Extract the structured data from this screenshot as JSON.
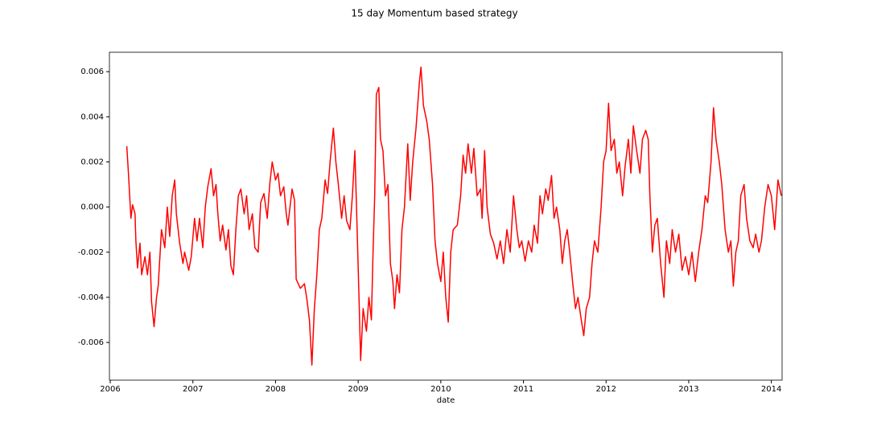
{
  "chart_data": {
    "type": "line",
    "title": "15 day Momentum based strategy",
    "xlabel": "date",
    "color": "#ff0000",
    "xlim": [
      2005.99,
      2014.13
    ],
    "xticks": [
      2006,
      2007,
      2008,
      2009,
      2010,
      2011,
      2012,
      2013,
      2014
    ],
    "ylim": [
      -0.00767,
      0.00686
    ],
    "yticks": [
      -0.006,
      -0.004,
      -0.002,
      {
        "value": 0,
        "label": "0.000"
      },
      0.002,
      0.004,
      0.006
    ],
    "x": [
      2006.2,
      2006.22,
      2006.25,
      2006.27,
      2006.3,
      2006.31,
      2006.33,
      2006.36,
      2006.38,
      2006.42,
      2006.45,
      2006.48,
      2006.5,
      2006.53,
      2006.56,
      2006.58,
      2006.62,
      2006.66,
      2006.69,
      2006.72,
      2006.75,
      2006.78,
      2006.8,
      2006.84,
      2006.88,
      2006.9,
      2006.95,
      2006.98,
      2007.02,
      2007.05,
      2007.08,
      2007.12,
      2007.15,
      2007.18,
      2007.22,
      2007.25,
      2007.28,
      2007.3,
      2007.33,
      2007.36,
      2007.4,
      2007.43,
      2007.46,
      2007.49,
      2007.52,
      2007.55,
      2007.58,
      2007.62,
      2007.65,
      2007.68,
      2007.72,
      2007.75,
      2007.79,
      2007.82,
      2007.86,
      2007.9,
      2007.93,
      2007.96,
      2008.0,
      2008.03,
      2008.06,
      2008.1,
      2008.13,
      2008.15,
      2008.2,
      2008.23,
      2008.25,
      2008.3,
      2008.35,
      2008.38,
      2008.41,
      2008.44,
      2008.47,
      2008.5,
      2008.53,
      2008.56,
      2008.6,
      2008.63,
      2008.66,
      2008.7,
      2008.73,
      2008.76,
      2008.8,
      2008.83,
      2008.86,
      2008.9,
      2008.93,
      2008.96,
      2008.98,
      2009.01,
      2009.03,
      2009.06,
      2009.1,
      2009.13,
      2009.16,
      2009.18,
      2009.2,
      2009.22,
      2009.25,
      2009.27,
      2009.3,
      2009.33,
      2009.36,
      2009.39,
      2009.42,
      2009.44,
      2009.47,
      2009.5,
      2009.53,
      2009.56,
      2009.6,
      2009.63,
      2009.66,
      2009.7,
      2009.74,
      2009.76,
      2009.79,
      2009.83,
      2009.86,
      2009.9,
      2009.93,
      2009.96,
      2010.0,
      2010.03,
      2010.06,
      2010.09,
      2010.12,
      2010.15,
      2010.2,
      2010.24,
      2010.27,
      2010.3,
      2010.33,
      2010.37,
      2010.4,
      2010.44,
      2010.48,
      2010.5,
      2010.53,
      2010.56,
      2010.6,
      2010.64,
      2010.68,
      2010.72,
      2010.76,
      2010.8,
      2010.84,
      2010.88,
      2010.92,
      2010.95,
      2010.98,
      2011.02,
      2011.06,
      2011.1,
      2011.13,
      2011.17,
      2011.2,
      2011.23,
      2011.27,
      2011.3,
      2011.34,
      2011.37,
      2011.4,
      2011.44,
      2011.47,
      2011.5,
      2011.53,
      2011.56,
      2011.6,
      2011.63,
      2011.66,
      2011.7,
      2011.73,
      2011.76,
      2011.8,
      2011.83,
      2011.86,
      2011.9,
      2011.94,
      2011.97,
      2012.0,
      2012.03,
      2012.06,
      2012.1,
      2012.13,
      2012.16,
      2012.2,
      2012.23,
      2012.27,
      2012.3,
      2012.33,
      2012.37,
      2012.41,
      2012.44,
      2012.48,
      2012.51,
      2012.53,
      2012.56,
      2012.59,
      2012.62,
      2012.66,
      2012.7,
      2012.73,
      2012.77,
      2012.8,
      2012.84,
      2012.88,
      2012.92,
      2012.96,
      2013.0,
      2013.04,
      2013.08,
      2013.12,
      2013.16,
      2013.2,
      2013.23,
      2013.27,
      2013.3,
      2013.33,
      2013.37,
      2013.4,
      2013.44,
      2013.48,
      2013.51,
      2013.54,
      2013.57,
      2013.6,
      2013.63,
      2013.67,
      2013.7,
      2013.74,
      2013.78,
      2013.81,
      2013.85,
      2013.88,
      2013.92,
      2013.96,
      2014.0,
      2014.04,
      2014.08,
      2014.12
    ],
    "values": [
      0.0027,
      0.0015,
      -0.0005,
      0.0001,
      -0.0003,
      -0.0015,
      -0.0027,
      -0.0016,
      -0.003,
      -0.0022,
      -0.003,
      -0.002,
      -0.0042,
      -0.0053,
      -0.004,
      -0.0035,
      -0.001,
      -0.0018,
      0.0,
      -0.0013,
      0.0005,
      0.0012,
      -0.0003,
      -0.0016,
      -0.0025,
      -0.002,
      -0.0028,
      -0.0022,
      -0.0005,
      -0.0015,
      -0.0005,
      -0.0018,
      0.0,
      0.0009,
      0.0017,
      0.0005,
      0.001,
      -0.0002,
      -0.0015,
      -0.0008,
      -0.0019,
      -0.001,
      -0.0026,
      -0.003,
      -0.001,
      0.0005,
      0.0008,
      -0.0003,
      0.0005,
      -0.001,
      -0.0003,
      -0.0018,
      -0.002,
      0.0002,
      0.0006,
      -0.0005,
      0.001,
      0.002,
      0.0012,
      0.0015,
      0.0005,
      0.0009,
      -0.0003,
      -0.0008,
      0.0008,
      0.0003,
      -0.0032,
      -0.0036,
      -0.0034,
      -0.0041,
      -0.005,
      -0.007,
      -0.0045,
      -0.003,
      -0.001,
      -0.0005,
      0.0012,
      0.0006,
      0.002,
      0.0035,
      0.002,
      0.001,
      -0.0005,
      0.0005,
      -0.0006,
      -0.001,
      0.0005,
      0.0025,
      0.0,
      -0.004,
      -0.0068,
      -0.0045,
      -0.0055,
      -0.004,
      -0.005,
      -0.002,
      0.0005,
      0.005,
      0.0053,
      0.003,
      0.0025,
      0.0005,
      0.001,
      -0.0025,
      -0.0033,
      -0.0045,
      -0.003,
      -0.0038,
      -0.001,
      0.0,
      0.0028,
      0.0003,
      0.002,
      0.0035,
      0.0055,
      0.0062,
      0.0045,
      0.0038,
      0.003,
      0.001,
      -0.0015,
      -0.0025,
      -0.0033,
      -0.002,
      -0.004,
      -0.0051,
      -0.002,
      -0.001,
      -0.0008,
      0.0005,
      0.0023,
      0.0015,
      0.0028,
      0.0015,
      0.0026,
      0.0005,
      0.0008,
      -0.0005,
      0.0025,
      0.0,
      -0.0012,
      -0.0016,
      -0.0023,
      -0.0015,
      -0.0025,
      -0.001,
      -0.002,
      0.0005,
      -0.001,
      -0.0018,
      -0.0015,
      -0.0024,
      -0.0015,
      -0.002,
      -0.0008,
      -0.0016,
      0.0005,
      -0.0003,
      0.0008,
      0.0003,
      0.0014,
      -0.0005,
      0.0,
      -0.001,
      -0.0025,
      -0.0015,
      -0.001,
      -0.002,
      -0.0035,
      -0.0045,
      -0.004,
      -0.005,
      -0.0057,
      -0.0045,
      -0.004,
      -0.0025,
      -0.0015,
      -0.002,
      0.0,
      0.002,
      0.0025,
      0.0046,
      0.0025,
      0.003,
      0.0015,
      0.002,
      0.0005,
      0.0018,
      0.003,
      0.0015,
      0.0036,
      0.0025,
      0.0015,
      0.003,
      0.0034,
      0.003,
      0.0005,
      -0.002,
      -0.0008,
      -0.0005,
      -0.0025,
      -0.004,
      -0.0015,
      -0.0025,
      -0.001,
      -0.002,
      -0.0012,
      -0.0028,
      -0.0022,
      -0.003,
      -0.002,
      -0.0033,
      -0.002,
      -0.001,
      0.0005,
      0.0002,
      0.002,
      0.0044,
      0.003,
      0.002,
      0.001,
      -0.001,
      -0.002,
      -0.0015,
      -0.0035,
      -0.002,
      -0.0015,
      0.0005,
      0.001,
      -0.0005,
      -0.0015,
      -0.0018,
      -0.0012,
      -0.002,
      -0.0015,
      0.0,
      0.001,
      0.0005,
      -0.001,
      0.0012,
      0.0005
    ]
  }
}
